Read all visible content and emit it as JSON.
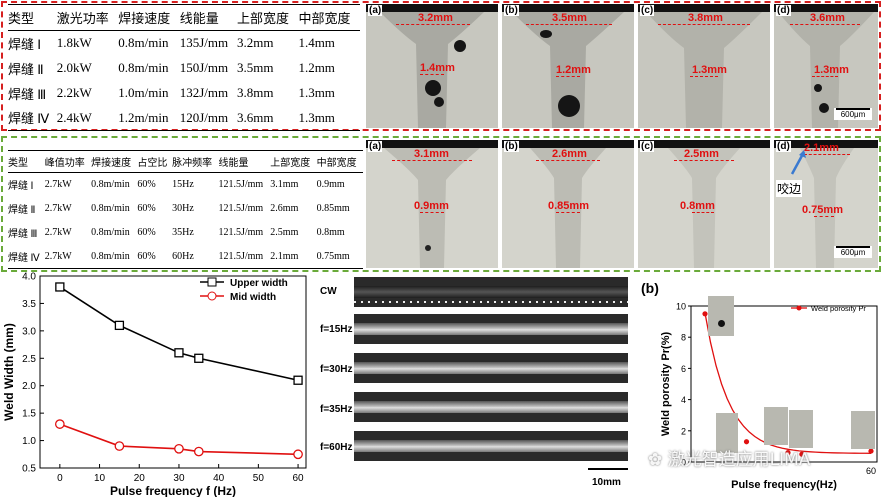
{
  "table1": {
    "headers": [
      "类型",
      "激光功率",
      "焊接速度",
      "线能量",
      "上部宽度",
      "中部宽度"
    ],
    "rows": [
      [
        "焊缝 Ⅰ",
        "1.8kW",
        "0.8m/min",
        "135J/mm",
        "3.2mm",
        "1.4mm"
      ],
      [
        "焊缝 Ⅱ",
        "2.0kW",
        "0.8m/min",
        "150J/mm",
        "3.5mm",
        "1.2mm"
      ],
      [
        "焊缝 Ⅲ",
        "2.2kW",
        "1.0m/min",
        "132J/mm",
        "3.8mm",
        "1.3mm"
      ],
      [
        "焊缝 Ⅳ",
        "2.4kW",
        "1.2m/min",
        "120J/mm",
        "3.6mm",
        "1.3mm"
      ]
    ]
  },
  "table2": {
    "headers": [
      "类型",
      "峰值功率",
      "焊接速度",
      "占空比",
      "脉冲频率",
      "线能量",
      "上部宽度",
      "中部宽度"
    ],
    "rows": [
      [
        "焊缝 Ⅰ",
        "2.7kW",
        "0.8m/min",
        "60%",
        "15Hz",
        "121.5J/mm",
        "3.1mm",
        "0.9mm"
      ],
      [
        "焊缝 Ⅱ",
        "2.7kW",
        "0.8m/min",
        "60%",
        "30Hz",
        "121.5J/mm",
        "2.6mm",
        "0.85mm"
      ],
      [
        "焊缝 Ⅲ",
        "2.7kW",
        "0.8m/min",
        "60%",
        "35Hz",
        "121.5J/mm",
        "2.5mm",
        "0.8mm"
      ],
      [
        "焊缝 Ⅳ",
        "2.7kW",
        "0.8m/min",
        "60%",
        "60Hz",
        "121.5J/mm",
        "2.1mm",
        "0.75mm"
      ]
    ]
  },
  "cw_panels": [
    {
      "label": "(a)",
      "top": "3.2mm",
      "mid": "1.4mm"
    },
    {
      "label": "(b)",
      "top": "3.5mm",
      "mid": "1.2mm"
    },
    {
      "label": "(c)",
      "top": "3.8mm",
      "mid": "1.3mm"
    },
    {
      "label": "(d)",
      "top": "3.6mm",
      "mid": "1.3mm"
    }
  ],
  "pulse_panels": [
    {
      "label": "(a)",
      "top": "3.1mm",
      "mid": "0.9mm"
    },
    {
      "label": "(b)",
      "top": "2.6mm",
      "mid": "0.85mm"
    },
    {
      "label": "(c)",
      "top": "2.5mm",
      "mid": "0.8mm"
    },
    {
      "label": "(d)",
      "top": "2.1mm",
      "mid": "0.75mm"
    }
  ],
  "scalebar": "600μm",
  "undercut_label": "咬边",
  "strips": {
    "labels": [
      "CW",
      "f=15Hz",
      "f=30Hz",
      "f=35Hz",
      "f=60Hz"
    ],
    "scalebar": "10mm"
  },
  "panel_b_label": "(b)",
  "watermark": "激光智造应用LIMA",
  "chart_data": [
    {
      "type": "line",
      "xlabel": "Pulse frequency f (Hz)",
      "ylabel": "Weld Width (mm)",
      "xlim": [
        -5,
        62
      ],
      "ylim": [
        0.5,
        4.0
      ],
      "xticks": [
        0,
        10,
        20,
        30,
        40,
        50,
        60
      ],
      "yticks": [
        0.5,
        1.0,
        1.5,
        2.0,
        2.5,
        3.0,
        3.5,
        4.0
      ],
      "legend_position": "top-right",
      "series": [
        {
          "name": "Upper width",
          "color": "#000000",
          "marker": "square",
          "x": [
            0,
            15,
            30,
            35,
            60
          ],
          "values": [
            3.8,
            3.1,
            2.6,
            2.5,
            2.1
          ]
        },
        {
          "name": "Mid width",
          "color": "#e01010",
          "marker": "circle",
          "x": [
            0,
            15,
            30,
            35,
            60
          ],
          "values": [
            1.3,
            0.9,
            0.85,
            0.8,
            0.75
          ]
        }
      ]
    },
    {
      "type": "scatter",
      "xlabel": "Pulse frequency(Hz)",
      "ylabel": "Weld porosity Pr(%)",
      "ylim": [
        0,
        10
      ],
      "yticks": [
        0,
        2,
        4,
        6,
        8,
        10
      ],
      "xticks_visible": [
        "60"
      ],
      "legend_position": "top-right",
      "series": [
        {
          "name": "Weld porosity Pr",
          "color": "#e01010",
          "x": [
            0,
            15,
            30,
            35,
            60
          ],
          "values": [
            9.5,
            1.3,
            0.6,
            0.5,
            0.7
          ]
        }
      ]
    }
  ]
}
